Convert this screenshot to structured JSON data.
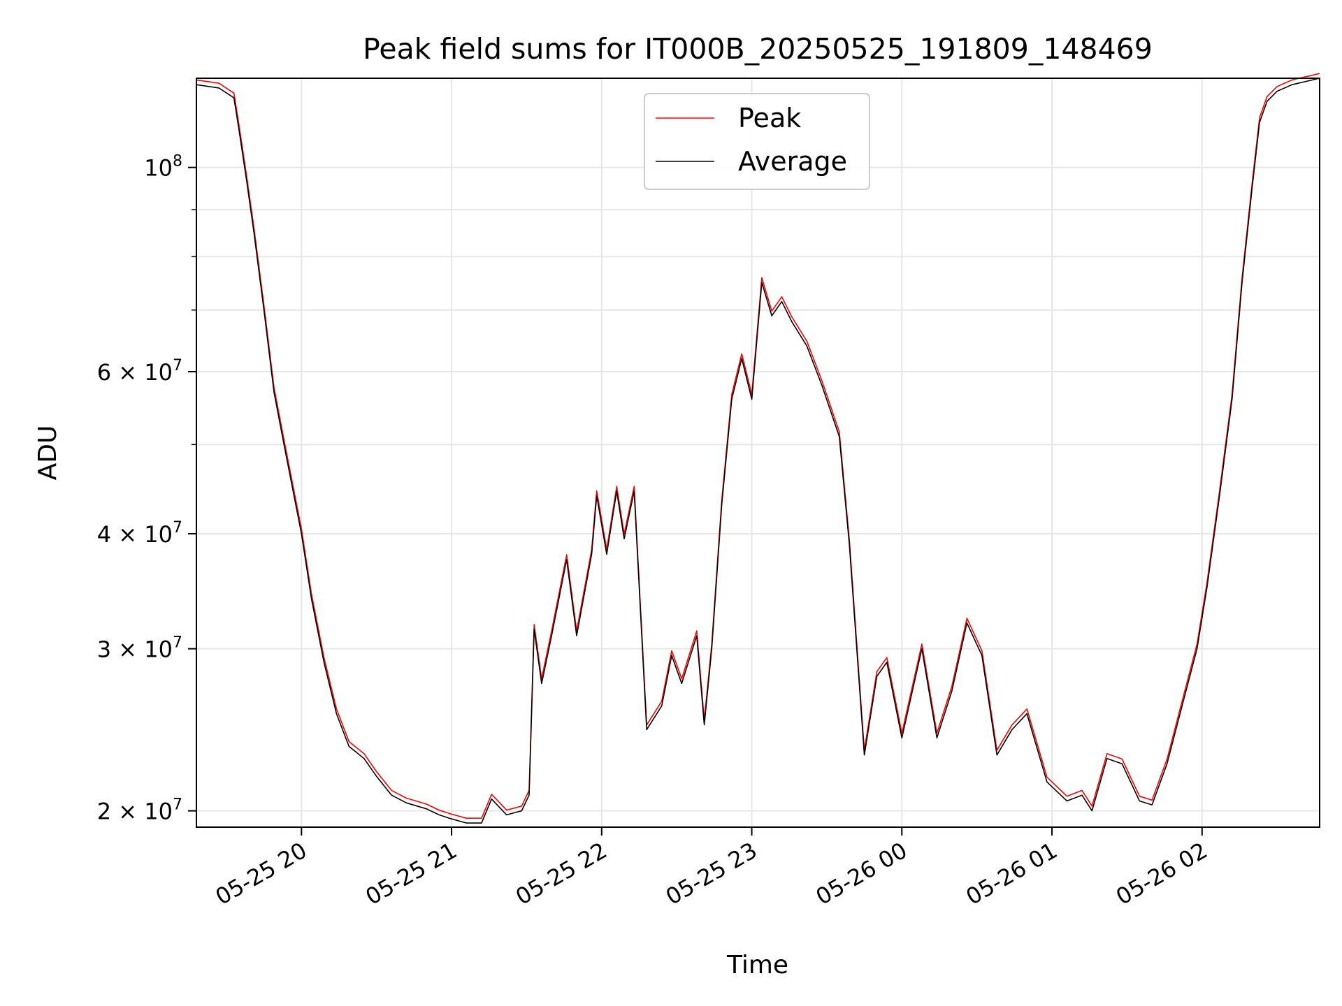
{
  "chart_data": {
    "type": "line",
    "title": "Peak field sums for IT000B_20250525_191809_148469",
    "xlabel": "Time",
    "ylabel": "ADU",
    "y_scale": "log",
    "ylim": [
      19200000,
      125000000
    ],
    "xlim": [
      "2025-05-25 19:18",
      "2025-05-26 02:47"
    ],
    "grid": true,
    "legend_position": "upper center",
    "x_ticks": [
      {
        "time": "2025-05-25 20:00",
        "label": "05-25 20"
      },
      {
        "time": "2025-05-25 21:00",
        "label": "05-25 21"
      },
      {
        "time": "2025-05-25 22:00",
        "label": "05-25 22"
      },
      {
        "time": "2025-05-25 23:00",
        "label": "05-25 23"
      },
      {
        "time": "2025-05-26 00:00",
        "label": "05-26 00"
      },
      {
        "time": "2025-05-26 01:00",
        "label": "05-26 01"
      },
      {
        "time": "2025-05-26 02:00",
        "label": "05-26 02"
      }
    ],
    "y_ticks": [
      {
        "value": 20000000,
        "base": "2",
        "exp": "7"
      },
      {
        "value": 30000000,
        "base": "3",
        "exp": "7"
      },
      {
        "value": 40000000,
        "base": "4",
        "exp": "7"
      },
      {
        "value": 60000000,
        "base": "6",
        "exp": "7"
      },
      {
        "value": 100000000,
        "base": "10",
        "exp": "8"
      }
    ],
    "y_minor_ticks": [
      50000000,
      70000000,
      80000000,
      90000000
    ],
    "series": [
      {
        "name": "Peak",
        "color": "#ff0000",
        "offset_ratio": 1.012
      },
      {
        "name": "Average",
        "color": "#000000",
        "offset_ratio": 1.0
      }
    ],
    "x": [
      "2025-05-25 19:18",
      "2025-05-25 19:27",
      "2025-05-25 19:33",
      "2025-05-25 19:35",
      "2025-05-25 19:38",
      "2025-05-25 19:41",
      "2025-05-25 19:45",
      "2025-05-25 19:49",
      "2025-05-25 19:53",
      "2025-05-25 19:57",
      "2025-05-25 20:00",
      "2025-05-25 20:04",
      "2025-05-25 20:09",
      "2025-05-25 20:14",
      "2025-05-25 20:19",
      "2025-05-25 20:25",
      "2025-05-25 20:30",
      "2025-05-25 20:36",
      "2025-05-25 20:42",
      "2025-05-25 20:50",
      "2025-05-25 20:55",
      "2025-05-25 21:00",
      "2025-05-25 21:06",
      "2025-05-25 21:12",
      "2025-05-25 21:16",
      "2025-05-25 21:22",
      "2025-05-25 21:28",
      "2025-05-25 21:31",
      "2025-05-25 21:33",
      "2025-05-25 21:36",
      "2025-05-25 21:40",
      "2025-05-25 21:46",
      "2025-05-25 21:50",
      "2025-05-25 21:56",
      "2025-05-25 21:58",
      "2025-05-25 22:02",
      "2025-05-25 22:06",
      "2025-05-25 22:09",
      "2025-05-25 22:13",
      "2025-05-25 22:18",
      "2025-05-25 22:24",
      "2025-05-25 22:28",
      "2025-05-25 22:32",
      "2025-05-25 22:38",
      "2025-05-25 22:41",
      "2025-05-25 22:44",
      "2025-05-25 22:48",
      "2025-05-25 22:52",
      "2025-05-25 22:56",
      "2025-05-25 23:00",
      "2025-05-25 23:04",
      "2025-05-25 23:08",
      "2025-05-25 23:12",
      "2025-05-25 23:16",
      "2025-05-25 23:22",
      "2025-05-25 23:28",
      "2025-05-25 23:35",
      "2025-05-25 23:39",
      "2025-05-25 23:45",
      "2025-05-25 23:50",
      "2025-05-25 23:54",
      "2025-05-26 00:00",
      "2025-05-26 00:08",
      "2025-05-26 00:14",
      "2025-05-26 00:20",
      "2025-05-26 00:26",
      "2025-05-26 00:32",
      "2025-05-26 00:38",
      "2025-05-26 00:44",
      "2025-05-26 00:50",
      "2025-05-26 00:58",
      "2025-05-26 01:06",
      "2025-05-26 01:12",
      "2025-05-26 01:16",
      "2025-05-26 01:22",
      "2025-05-26 01:28",
      "2025-05-26 01:35",
      "2025-05-26 01:40",
      "2025-05-26 01:46",
      "2025-05-26 01:52",
      "2025-05-26 01:58",
      "2025-05-26 02:02",
      "2025-05-26 02:07",
      "2025-05-26 02:12",
      "2025-05-26 02:16",
      "2025-05-26 02:20",
      "2025-05-26 02:23",
      "2025-05-26 02:26",
      "2025-05-26 02:30",
      "2025-05-26 02:36",
      "2025-05-26 02:47"
    ],
    "values": [
      123000000,
      122000000,
      119000000,
      110000000,
      97000000,
      85000000,
      70000000,
      57000000,
      50000000,
      44000000,
      40000000,
      34000000,
      29000000,
      25500000,
      23500000,
      22800000,
      21800000,
      20800000,
      20400000,
      20100000,
      19800000,
      19600000,
      19400000,
      19400000,
      20600000,
      19800000,
      20000000,
      20800000,
      31500000,
      27500000,
      31000000,
      37500000,
      31000000,
      38000000,
      44000000,
      38000000,
      44500000,
      39500000,
      44500000,
      24500000,
      26000000,
      29500000,
      27500000,
      31000000,
      24800000,
      30000000,
      43000000,
      56000000,
      62000000,
      56000000,
      75000000,
      69000000,
      71500000,
      68000000,
      64000000,
      58000000,
      51000000,
      39000000,
      23000000,
      28000000,
      29000000,
      24000000,
      30000000,
      24000000,
      27000000,
      32000000,
      29500000,
      23000000,
      24500000,
      25500000,
      21500000,
      20500000,
      20800000,
      20000000,
      22800000,
      22500000,
      20500000,
      20300000,
      22500000,
      26000000,
      30000000,
      35000000,
      44000000,
      56000000,
      75000000,
      95000000,
      112000000,
      118000000,
      121000000,
      123000000,
      125000000
    ]
  }
}
